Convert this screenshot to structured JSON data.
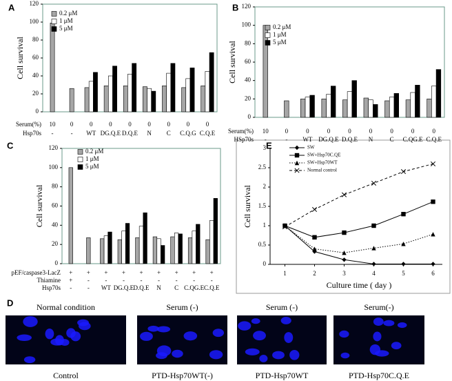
{
  "chart_data": [
    {
      "type": "bar",
      "panel": "A",
      "ylabel": "Cell survival",
      "ylim": [
        0,
        120
      ],
      "yticks": [
        0,
        20,
        40,
        60,
        80,
        100,
        120
      ],
      "rows": [
        {
          "name": "Serum(%)",
          "labels": [
            "10",
            "0",
            "0",
            "0",
            "0",
            "0",
            "0",
            "0",
            "0"
          ]
        }
      ],
      "categories_name": "Hsp70s",
      "categories": [
        "-",
        "-",
        "WT",
        "DG.Q.E",
        "D.Q.E",
        "N",
        "C",
        "C.Q.G",
        "C.Q.E"
      ],
      "series": [
        {
          "name": "0.2 μM",
          "color": "#a6a6a6",
          "values": [
            99,
            26,
            27,
            29,
            29,
            28,
            29,
            27,
            29
          ]
        },
        {
          "name": "1 μM",
          "color": "#ffffff",
          "values": [
            null,
            null,
            34,
            40,
            42,
            26,
            43,
            37,
            45
          ]
        },
        {
          "name": "5 μM",
          "color": "#000000",
          "values": [
            null,
            null,
            44,
            51,
            54,
            23,
            54,
            49,
            66
          ]
        }
      ]
    },
    {
      "type": "bar",
      "panel": "B",
      "ylabel": "Cell survival",
      "ylim": [
        0,
        120
      ],
      "yticks": [
        0,
        20,
        40,
        60,
        80,
        100,
        120
      ],
      "rows": [
        {
          "name": "Serum(%)",
          "labels": [
            "10",
            "0",
            "0",
            "0",
            "0",
            "0",
            "0",
            "0",
            "0"
          ]
        }
      ],
      "categories_name": "HSp70s",
      "categories": [
        "-",
        "-",
        "WT",
        "DG.Q.E",
        "D.Q.E",
        "N",
        "C",
        "C.QG.E",
        "C.Q.E"
      ],
      "series": [
        {
          "name": "0.2 μM",
          "color": "#a6a6a6",
          "values": [
            100,
            18,
            20,
            20,
            19,
            21,
            18,
            19,
            20
          ]
        },
        {
          "name": "1 μM",
          "color": "#ffffff",
          "values": [
            null,
            null,
            22,
            25,
            28,
            19,
            22,
            27,
            34
          ]
        },
        {
          "name": "5 μM",
          "color": "#000000",
          "values": [
            null,
            null,
            24,
            34,
            40,
            14,
            26,
            35,
            52
          ]
        }
      ]
    },
    {
      "type": "bar",
      "panel": "C",
      "ylabel": "Cell survival",
      "ylim": [
        0,
        120
      ],
      "yticks": [
        0,
        20,
        40,
        60,
        80,
        100,
        120
      ],
      "rows": [
        {
          "name": "pEF/caspase3-LacZ",
          "labels": [
            "+",
            "+",
            "+",
            "+",
            "+",
            "+",
            "+",
            "+",
            "+"
          ]
        },
        {
          "name": "Thiamine",
          "labels": [
            "+",
            "-",
            "-",
            "-",
            "-",
            "-",
            "-",
            "-",
            "-"
          ]
        }
      ],
      "categories_name": "Hsp70s",
      "categories": [
        "-",
        "-",
        "WT",
        "DG.Q.E",
        "D.Q.E",
        "N",
        "C",
        "C.QG.E",
        "C.Q.E"
      ],
      "series": [
        {
          "name": "0.2 μM",
          "color": "#a6a6a6",
          "values": [
            100,
            27,
            26,
            25,
            27,
            28,
            28,
            27,
            25
          ]
        },
        {
          "name": "1 μM",
          "color": "#ffffff",
          "values": [
            null,
            null,
            29,
            34,
            39,
            26,
            32,
            34,
            45
          ]
        },
        {
          "name": "5 μM",
          "color": "#000000",
          "values": [
            null,
            null,
            33,
            42,
            53,
            19,
            31,
            41,
            68
          ]
        }
      ]
    },
    {
      "type": "line",
      "panel": "E",
      "xlabel": "Culture time ( day )",
      "ylabel": "Cell survival",
      "x": [
        1,
        2,
        3,
        4,
        5,
        6
      ],
      "xlim": [
        0.5,
        6.5
      ],
      "xticks": [
        1,
        2,
        3,
        4,
        5,
        6
      ],
      "ylim": [
        0,
        3
      ],
      "yticks": [
        0,
        0.5,
        1,
        1.5,
        2,
        2.5,
        3
      ],
      "series": [
        {
          "name": "SW",
          "color": "#000000",
          "style": "solid",
          "marker": "diamond",
          "values": [
            1,
            0.33,
            0.12,
            0.01,
            0.01,
            0.01
          ]
        },
        {
          "name": "SW+Hsp70C.QE",
          "color": "#000000",
          "style": "solid",
          "marker": "square",
          "values": [
            1,
            0.7,
            0.82,
            1.0,
            1.3,
            1.62
          ]
        },
        {
          "name": "SW+Hsp70WT",
          "color": "#000000",
          "style": "dotted",
          "marker": "triangle",
          "values": [
            1,
            0.4,
            0.3,
            0.42,
            0.53,
            0.78
          ]
        },
        {
          "name": "Normal control",
          "color": "#000000",
          "style": "dashed",
          "marker": "x",
          "values": [
            0.97,
            1.42,
            1.8,
            2.1,
            2.4,
            2.6
          ]
        }
      ]
    }
  ],
  "micrographs": {
    "panel": "D",
    "images": [
      {
        "title": "Normal condition",
        "caption": "Control"
      },
      {
        "title": "Serum (-)",
        "caption": "PTD-Hsp70WT(-)"
      },
      {
        "title": "Serum (-)",
        "caption": "PTD-Hsp70WT"
      },
      {
        "title": "Serum(-)",
        "caption": "PTD-Hsp70C.Q.E"
      }
    ]
  }
}
